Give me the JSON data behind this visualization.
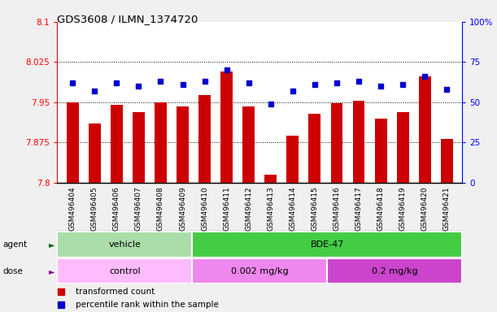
{
  "title": "GDS3608 / ILMN_1374720",
  "samples": [
    "GSM496404",
    "GSM496405",
    "GSM496406",
    "GSM496407",
    "GSM496408",
    "GSM496409",
    "GSM496410",
    "GSM496411",
    "GSM496412",
    "GSM496413",
    "GSM496414",
    "GSM496415",
    "GSM496416",
    "GSM496417",
    "GSM496418",
    "GSM496419",
    "GSM496420",
    "GSM496421"
  ],
  "red_values": [
    7.95,
    7.91,
    7.945,
    7.932,
    7.95,
    7.942,
    7.963,
    8.008,
    7.942,
    7.815,
    7.888,
    7.928,
    7.948,
    7.952,
    7.92,
    7.932,
    7.998,
    7.882
  ],
  "blue_values": [
    62,
    57,
    62,
    60,
    63,
    61,
    63,
    70,
    62,
    49,
    57,
    61,
    62,
    63,
    60,
    61,
    66,
    58
  ],
  "ylim_left": [
    7.8,
    8.1
  ],
  "ylim_right": [
    0,
    100
  ],
  "yticks_left": [
    7.8,
    7.875,
    7.95,
    8.025,
    8.1
  ],
  "yticks_right": [
    0,
    25,
    50,
    75,
    100
  ],
  "ytick_labels_left": [
    "7.8",
    "7.875",
    "7.95",
    "8.025",
    "8.1"
  ],
  "ytick_labels_right": [
    "0",
    "25",
    "50",
    "75",
    "100%"
  ],
  "grid_lines": [
    7.875,
    7.95,
    8.025
  ],
  "bar_color": "#cc0000",
  "dot_color": "#0000cc",
  "agent_groups": [
    {
      "label": "vehicle",
      "start": 0,
      "end": 6,
      "color": "#aaddaa"
    },
    {
      "label": "BDE-47",
      "start": 6,
      "end": 18,
      "color": "#44cc44"
    }
  ],
  "dose_groups": [
    {
      "label": "control",
      "start": 0,
      "end": 6,
      "color": "#ffbbff"
    },
    {
      "label": "0.002 mg/kg",
      "start": 6,
      "end": 12,
      "color": "#ee88ee"
    },
    {
      "label": "0.2 mg/kg",
      "start": 12,
      "end": 18,
      "color": "#cc44cc"
    }
  ],
  "legend_red": "transformed count",
  "legend_blue": "percentile rank within the sample",
  "tick_bg_color": "#d0d0d0",
  "fig_bg_color": "#f0f0f0"
}
